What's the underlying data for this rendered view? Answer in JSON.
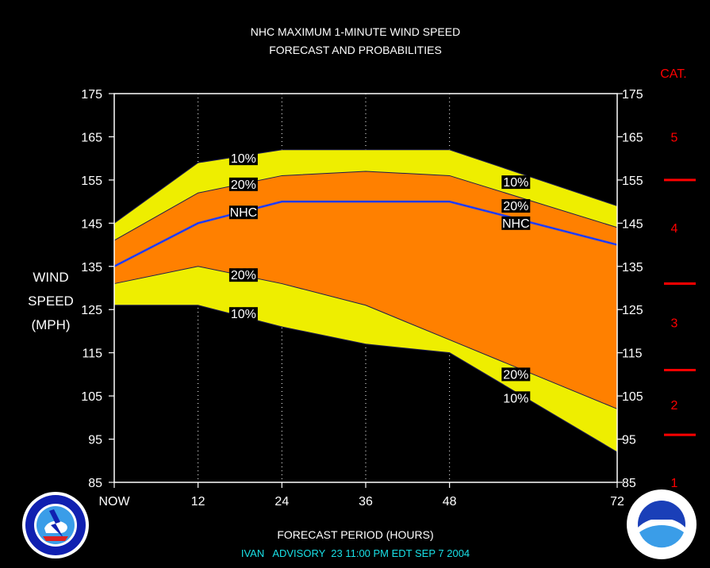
{
  "title_line1": "NHC MAXIMUM 1-MINUTE WIND SPEED",
  "title_line2": "FORECAST AND PROBABILITIES",
  "ylabel": [
    "WIND",
    "SPEED",
    "(MPH)"
  ],
  "xlabel": "FORECAST PERIOD (HOURS)",
  "advisory": "IVAN   ADVISORY  23 11:00 PM EDT SEP 7 2004",
  "cat_header": "CAT.",
  "colors": {
    "outer_band": "#eeee00",
    "inner_band": "#ff8000",
    "nhc_line": "#1e3cff",
    "category": "#ff0000",
    "advisory": "#19e0e6"
  },
  "logos": {
    "left": "nws-logo",
    "right": "noaa-logo"
  },
  "chart_data": {
    "type": "area",
    "xlim": [
      0,
      72
    ],
    "ylim": [
      85,
      175
    ],
    "xticks": [
      0,
      12,
      24,
      36,
      48,
      72
    ],
    "xtick_labels": [
      "NOW",
      "12",
      "24",
      "36",
      "48",
      "72"
    ],
    "yticks": [
      85,
      95,
      105,
      115,
      125,
      135,
      145,
      155,
      165,
      175
    ],
    "grid_x": [
      12,
      24,
      36,
      48
    ],
    "nhc": {
      "x": [
        0,
        12,
        24,
        36,
        48,
        72
      ],
      "y": [
        135,
        145,
        150,
        150,
        150,
        140
      ]
    },
    "upper_10": {
      "x": [
        0,
        12,
        24,
        36,
        48,
        72
      ],
      "y": [
        145,
        159,
        162,
        162,
        162,
        149
      ]
    },
    "upper_20": {
      "x": [
        0,
        12,
        24,
        36,
        48,
        72
      ],
      "y": [
        141,
        152,
        156,
        157,
        156,
        144
      ]
    },
    "lower_20": {
      "x": [
        0,
        12,
        24,
        36,
        48,
        72
      ],
      "y": [
        131,
        135,
        131,
        126,
        118,
        102
      ]
    },
    "lower_10": {
      "x": [
        0,
        12,
        24,
        36,
        48,
        72
      ],
      "y": [
        126,
        126,
        121,
        117,
        115,
        92
      ]
    },
    "labels": [
      {
        "text": "10%",
        "x": 18.5,
        "y": 160
      },
      {
        "text": "20%",
        "x": 18.5,
        "y": 154
      },
      {
        "text": "NHC",
        "x": 18.5,
        "y": 147.5
      },
      {
        "text": "20%",
        "x": 18.5,
        "y": 133
      },
      {
        "text": "10%",
        "x": 18.5,
        "y": 124
      },
      {
        "text": "10%",
        "x": 57.5,
        "y": 154.5
      },
      {
        "text": "20%",
        "x": 57.5,
        "y": 149
      },
      {
        "text": "NHC",
        "x": 57.5,
        "y": 145
      },
      {
        "text": "20%",
        "x": 57.5,
        "y": 110
      },
      {
        "text": "10%",
        "x": 57.5,
        "y": 104.5
      }
    ],
    "categories": [
      {
        "label": "5",
        "y": 165
      },
      {
        "label": "4",
        "y": 144
      },
      {
        "label": "3",
        "y": 122
      },
      {
        "label": "2",
        "y": 103
      },
      {
        "label": "1",
        "y": 85
      }
    ],
    "category_bounds": [
      155,
      131,
      111,
      96
    ]
  }
}
